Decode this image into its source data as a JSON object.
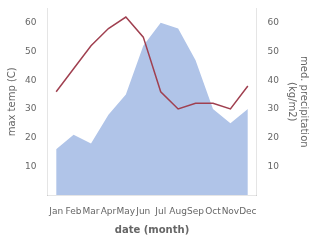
{
  "chart_data": {
    "type": "line",
    "categories": [
      "Jan",
      "Feb",
      "Mar",
      "Apr",
      "May",
      "Jun",
      "Jul",
      "Aug",
      "Sep",
      "Oct",
      "Nov",
      "Dec"
    ],
    "xlabel": "date (month)",
    "ylabel": "max temp (C)",
    "y2label": "med. precipitation\n(kg/m2)",
    "ylim": [
      0,
      65
    ],
    "yticks": [
      10,
      20,
      30,
      40,
      50,
      60
    ],
    "y2lim": [
      0,
      65
    ],
    "y2ticks": [
      10,
      20,
      30,
      40,
      50,
      60
    ],
    "grid": false,
    "series": [
      {
        "type": "area",
        "axis": "y2",
        "color": "#b0c4e8",
        "values": [
          16,
          21,
          18,
          28,
          35,
          52,
          60,
          58,
          47,
          30,
          25,
          30
        ]
      },
      {
        "type": "line",
        "color": "#a04050",
        "values": [
          36,
          44,
          52,
          58,
          62,
          55,
          36,
          30,
          32,
          32,
          30,
          38
        ]
      }
    ]
  }
}
